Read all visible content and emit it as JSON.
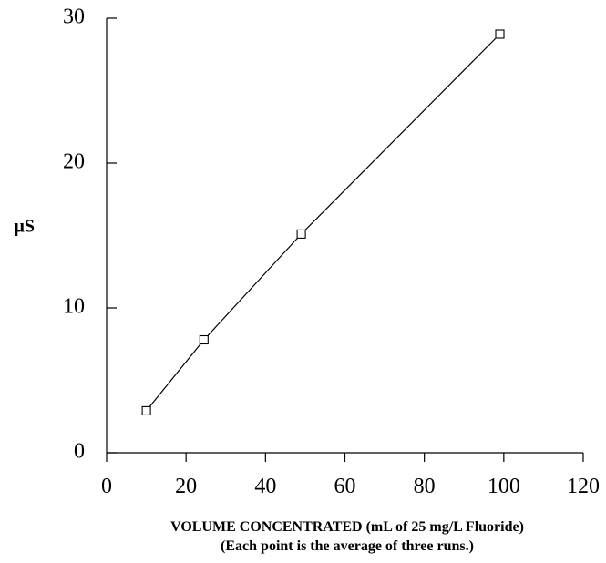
{
  "chart_data": {
    "type": "line",
    "title": "",
    "ylabel": "µS",
    "xlabel": "VOLUME CONCENTRATED (mL of 25 mg/L Fluoride)",
    "xlabel_note": "(Each point is the average of three runs.)",
    "xlim": [
      0,
      120
    ],
    "ylim": [
      0,
      30
    ],
    "x_ticks": [
      "0",
      "20",
      "40",
      "60",
      "80",
      "100",
      "120"
    ],
    "y_ticks": [
      "0",
      "10",
      "20",
      "30"
    ],
    "grid": false,
    "legend": "none",
    "marker": "open-square",
    "series": [
      {
        "x": [
          10,
          24.5,
          49,
          99
        ],
        "y": [
          2.9,
          7.8,
          15.1,
          28.9
        ]
      }
    ]
  }
}
